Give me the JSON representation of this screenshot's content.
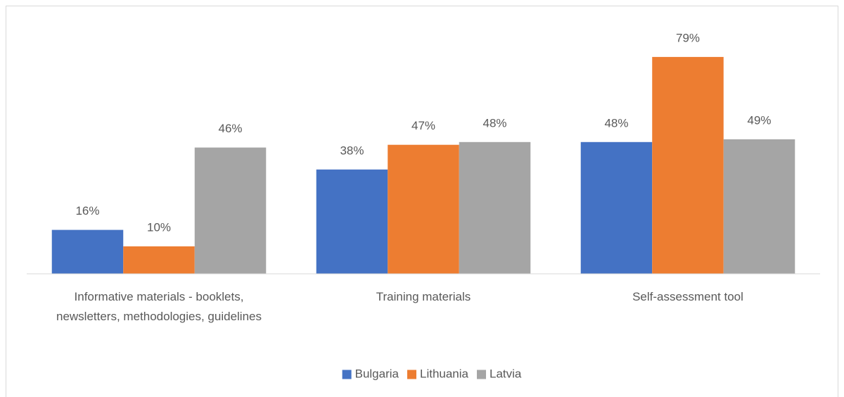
{
  "chart_data": {
    "type": "bar",
    "categories": [
      "Informative materials - booklets, newsletters, methodologies, guidelines",
      "Training materials",
      "Self-assessment tool"
    ],
    "series": [
      {
        "name": "Bulgaria",
        "color": "#4472c4",
        "values": [
          16,
          38,
          48
        ],
        "value_labels": [
          "16%",
          "38%",
          "48%"
        ]
      },
      {
        "name": "Lithuania",
        "color": "#ed7d31",
        "values": [
          10,
          47,
          79
        ],
        "value_labels": [
          "10%",
          "47%",
          "79%"
        ]
      },
      {
        "name": "Latvia",
        "color": "#a5a5a5",
        "values": [
          46,
          48,
          49
        ],
        "value_labels": [
          "46%",
          "48%",
          "49%"
        ]
      }
    ],
    "ylim": [
      0,
      90
    ],
    "legend": "bottom"
  }
}
